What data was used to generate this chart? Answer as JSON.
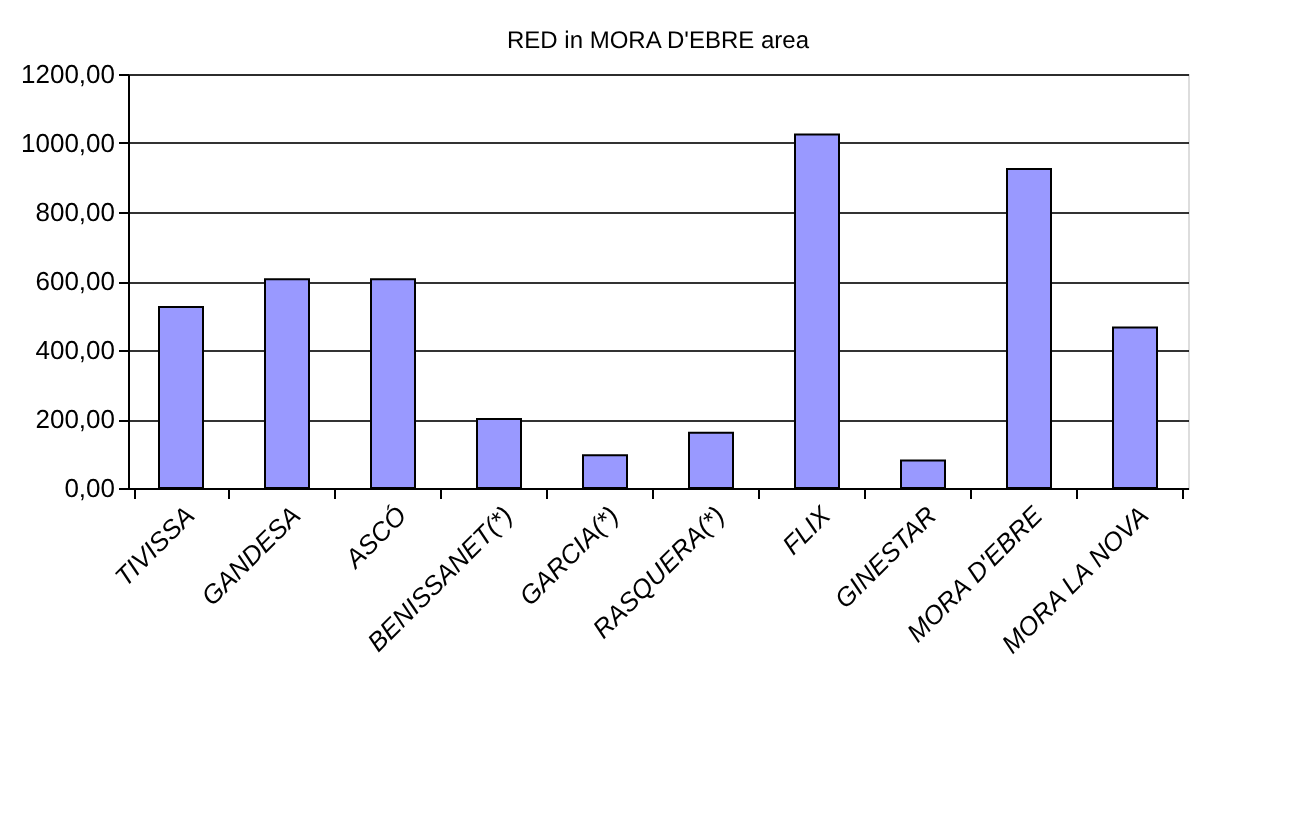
{
  "chart_data": {
    "type": "bar",
    "title": "RED in MORA D'EBRE area",
    "categories": [
      "TIVISSA",
      "GANDESA",
      "ASCÓ",
      "BENISSANET(*)",
      "GARCIA(*)",
      "RASQUERA(*)",
      "FLIX",
      "GINESTAR",
      "MORA D'EBRE",
      "MORA LA NOVA"
    ],
    "values": [
      525,
      605,
      605,
      200,
      95,
      160,
      1025,
      80,
      925,
      465
    ],
    "color": "#9999ff",
    "ylim": [
      0,
      1200
    ],
    "yticks": [
      {
        "value": 0,
        "label": "0,00"
      },
      {
        "value": 200,
        "label": "200,00"
      },
      {
        "value": 400,
        "label": "400,00"
      },
      {
        "value": 600,
        "label": "600,00"
      },
      {
        "value": 800,
        "label": "800,00"
      },
      {
        "value": 1000,
        "label": "1000,00"
      },
      {
        "value": 1200,
        "label": "1200,00"
      }
    ],
    "grid": "y"
  }
}
